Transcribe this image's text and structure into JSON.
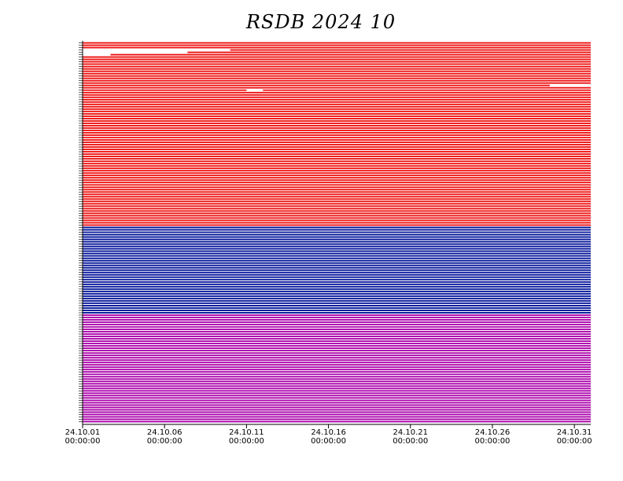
{
  "chart_data": {
    "type": "timeline",
    "title": "RSDB  2024  10",
    "x_tick_labels": [
      {
        "date": "24.10.01",
        "time": "00:00:00",
        "day": 0
      },
      {
        "date": "24.10.06",
        "time": "00:00:00",
        "day": 5
      },
      {
        "date": "24.10.11",
        "time": "00:00:00",
        "day": 10
      },
      {
        "date": "24.10.16",
        "time": "00:00:00",
        "day": 15
      },
      {
        "date": "24.10.21",
        "time": "00:00:00",
        "day": 20
      },
      {
        "date": "24.10.26",
        "time": "00:00:00",
        "day": 25
      },
      {
        "date": "24.10.31",
        "time": "00:00:00",
        "day": 30
      }
    ],
    "xlim": [
      0,
      31
    ],
    "groups": [
      {
        "color": "#ee1111",
        "rows": 78
      },
      {
        "color": "#001199",
        "rows": 37
      },
      {
        "color": "#aa00aa",
        "rows": 46
      }
    ],
    "full_coverage_gaps_in_rows": [
      {
        "row": 5,
        "start": 0,
        "end": 1.7
      },
      {
        "row": 4,
        "start": 0,
        "end": 6.4
      },
      {
        "row": 3,
        "start": 0,
        "end": 9.0
      },
      {
        "row": 18,
        "start": 28.5,
        "end": 31
      },
      {
        "row": 20,
        "start": 10.0,
        "end": 11.0
      }
    ]
  }
}
